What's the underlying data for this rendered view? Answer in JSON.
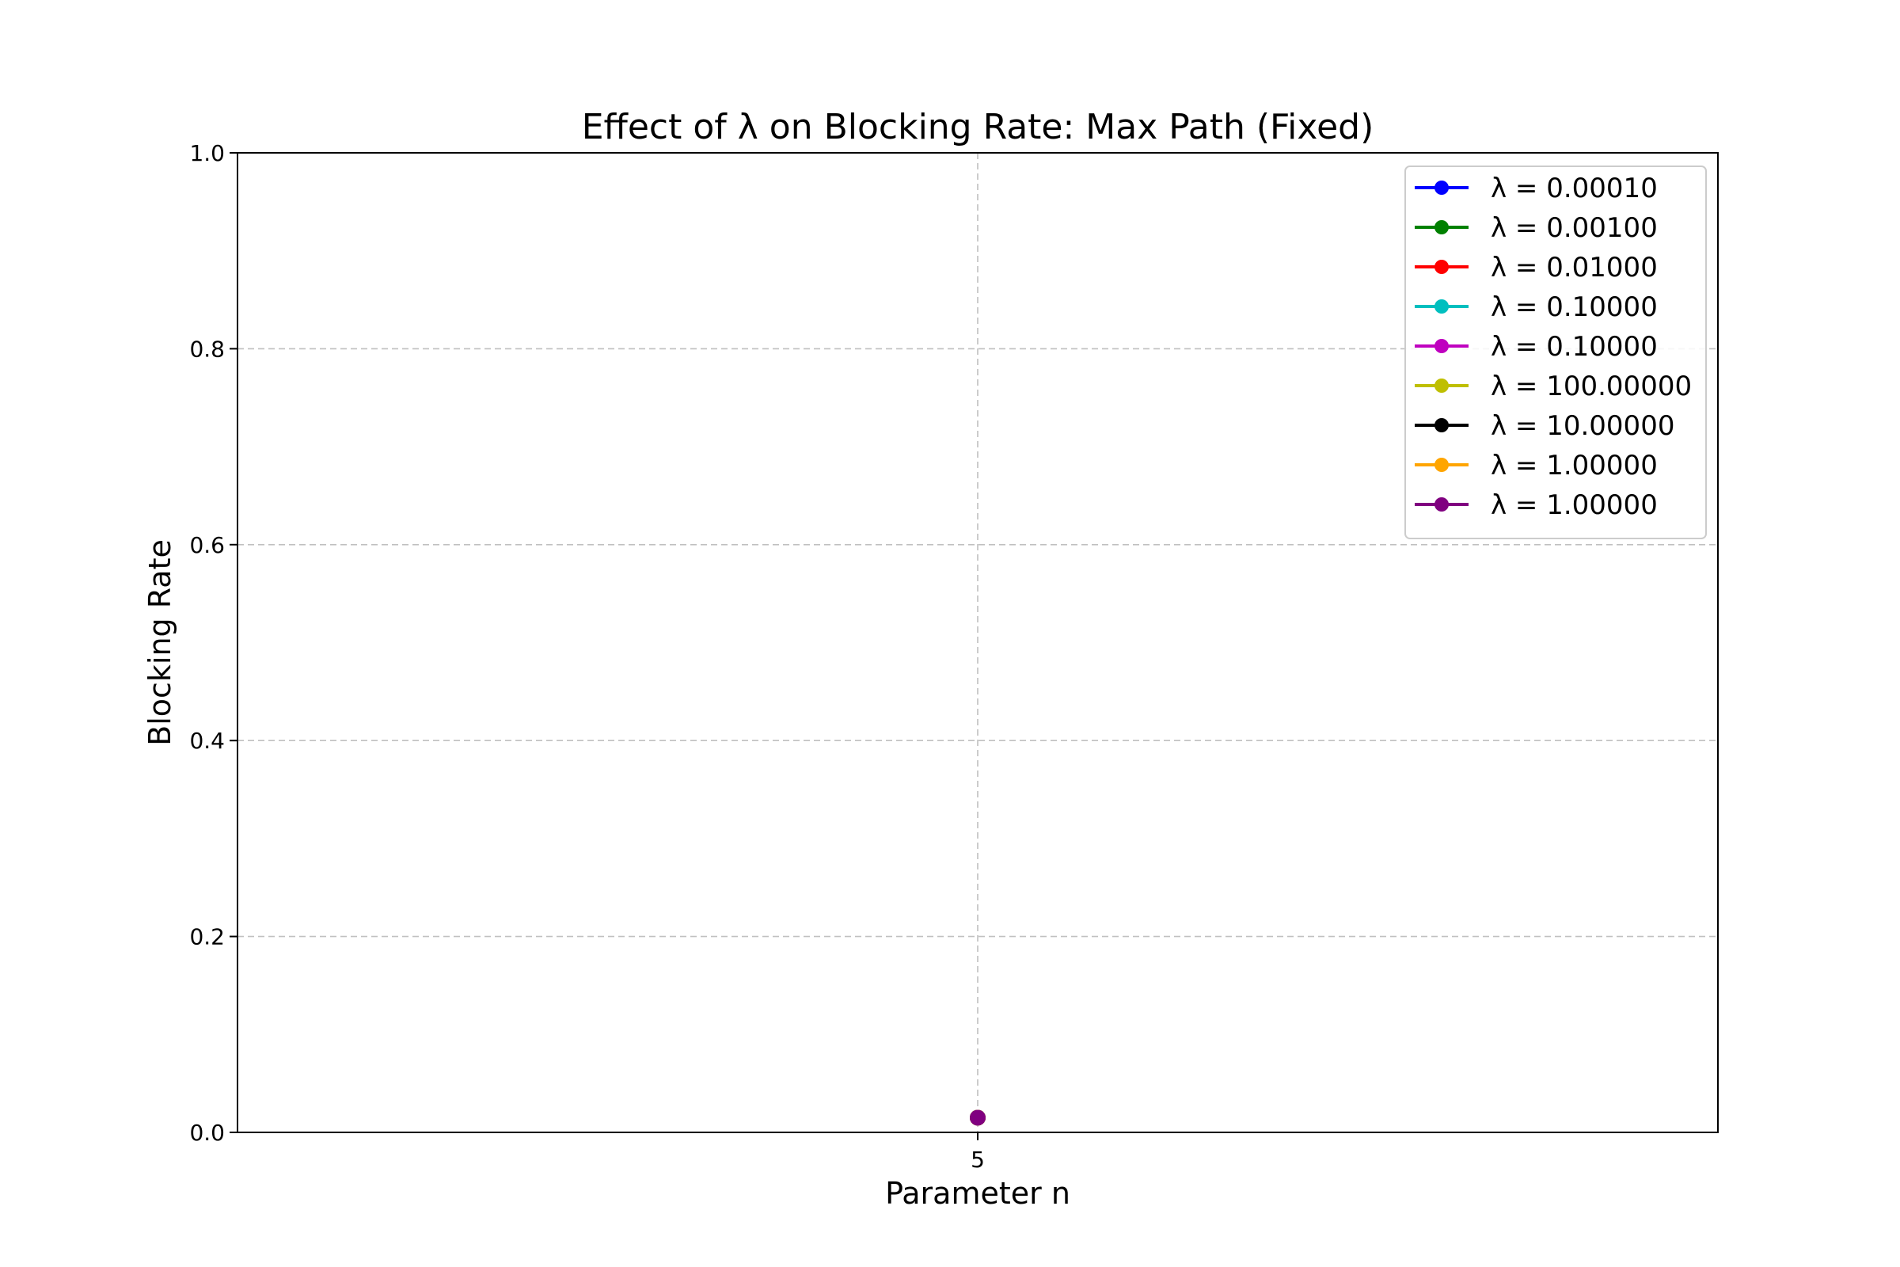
{
  "chart_data": {
    "type": "line",
    "title": "Effect of λ on Blocking Rate: Max Path (Fixed)",
    "xlabel": "Parameter n",
    "ylabel": "Blocking Rate",
    "x": [
      5
    ],
    "x_ticks": [
      "5"
    ],
    "ylim": [
      0.0,
      1.0
    ],
    "y_ticks": [
      "0.0",
      "0.2",
      "0.4",
      "0.6",
      "0.8",
      "1.0"
    ],
    "grid": true,
    "legend_position": "top-right",
    "series": [
      {
        "name": "λ = 0.00010",
        "color": "#0000ff",
        "values": [
          0.015
        ]
      },
      {
        "name": "λ = 0.00100",
        "color": "#008000",
        "values": [
          0.015
        ]
      },
      {
        "name": "λ = 0.01000",
        "color": "#ff0000",
        "values": [
          0.015
        ]
      },
      {
        "name": "λ = 0.10000",
        "color": "#00bfbf",
        "values": [
          0.015
        ]
      },
      {
        "name": "λ = 0.10000",
        "color": "#bf00bf",
        "values": [
          0.015
        ]
      },
      {
        "name": "λ = 100.00000",
        "color": "#bfbf00",
        "values": [
          0.015
        ]
      },
      {
        "name": "λ = 10.00000",
        "color": "#000000",
        "values": [
          0.015
        ]
      },
      {
        "name": "λ = 1.00000",
        "color": "#ffa500",
        "values": [
          0.015
        ]
      },
      {
        "name": "λ = 1.00000",
        "color": "#800080",
        "values": [
          0.015
        ]
      }
    ]
  }
}
